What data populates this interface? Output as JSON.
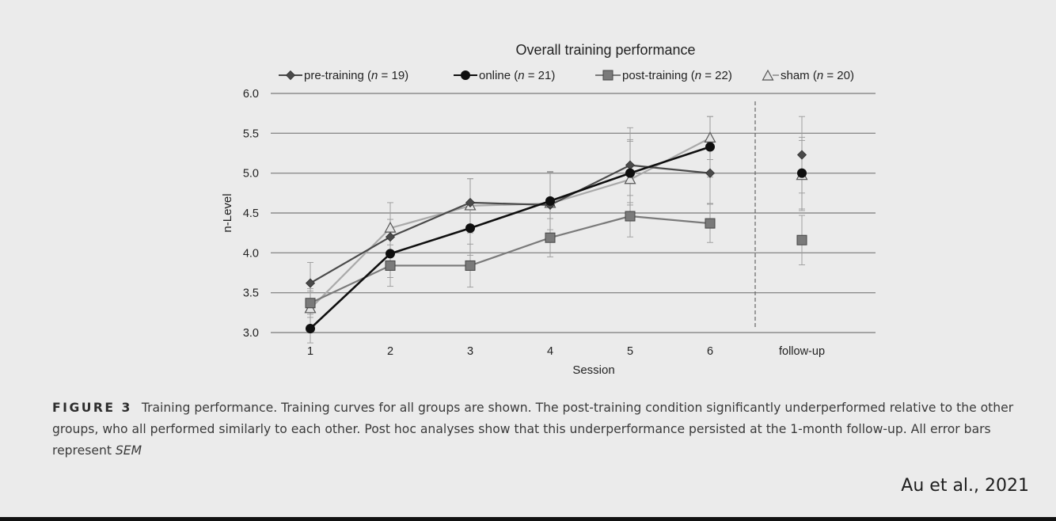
{
  "chart_data": {
    "type": "line",
    "title": "Overall training performance",
    "xlabel": "Session",
    "ylabel": "n-Level",
    "categories": [
      "1",
      "2",
      "3",
      "4",
      "5",
      "6",
      "follow-up"
    ],
    "yticks": [
      "3.0",
      "3.5",
      "4.0",
      "4.5",
      "5.0",
      "5.5",
      "6.0"
    ],
    "ylim": [
      3.0,
      6.0
    ],
    "grid": true,
    "legend_position": "top",
    "series": [
      {
        "name": "pre-training",
        "n_label": "n",
        "n_value": " = 19)",
        "marker": "diamond",
        "color": "#4a4a4a",
        "values": [
          3.62,
          4.2,
          4.63,
          4.6,
          5.1,
          5.0,
          5.23
        ],
        "sem": [
          0.26,
          0.22,
          0.3,
          0.42,
          0.47,
          0.38,
          0.48
        ]
      },
      {
        "name": "online",
        "n_label": "n",
        "n_value": " = 21)",
        "marker": "circle",
        "color": "#0f0f0f",
        "values": [
          3.05,
          3.99,
          4.31,
          4.65,
          5.0,
          5.33,
          5.0
        ],
        "sem": [
          0.18,
          0.3,
          0.34,
          0.36,
          0.4,
          0.38,
          0.45
        ]
      },
      {
        "name": "post-training",
        "n_label": "n",
        "n_value": " = 22)",
        "marker": "square",
        "color": "#7a7a7a",
        "values": [
          3.37,
          3.84,
          3.84,
          4.19,
          4.46,
          4.37,
          4.16
        ],
        "sem": [
          0.18,
          0.26,
          0.27,
          0.24,
          0.26,
          0.24,
          0.31
        ]
      },
      {
        "name": "sham",
        "n_label": "n",
        "n_value": " = 20)",
        "marker": "triangle",
        "color": "#a9a9a9",
        "values": [
          3.3,
          4.31,
          4.59,
          4.62,
          4.92,
          5.44,
          4.97
        ],
        "sem": [
          0.22,
          0.32,
          0.34,
          0.4,
          0.5,
          0.27,
          0.44
        ]
      }
    ]
  },
  "caption": {
    "figure_label": "FIGURE 3",
    "text": "Training performance. Training curves for all groups are shown. The post-training condition significantly underperformed relative to the other groups, who all performed similarly to each other. Post hoc analyses show that this underperformance persisted at the 1-month follow-up. All error bars represent ",
    "sem_term": "SEM"
  },
  "citation": "Au et al., 2021"
}
